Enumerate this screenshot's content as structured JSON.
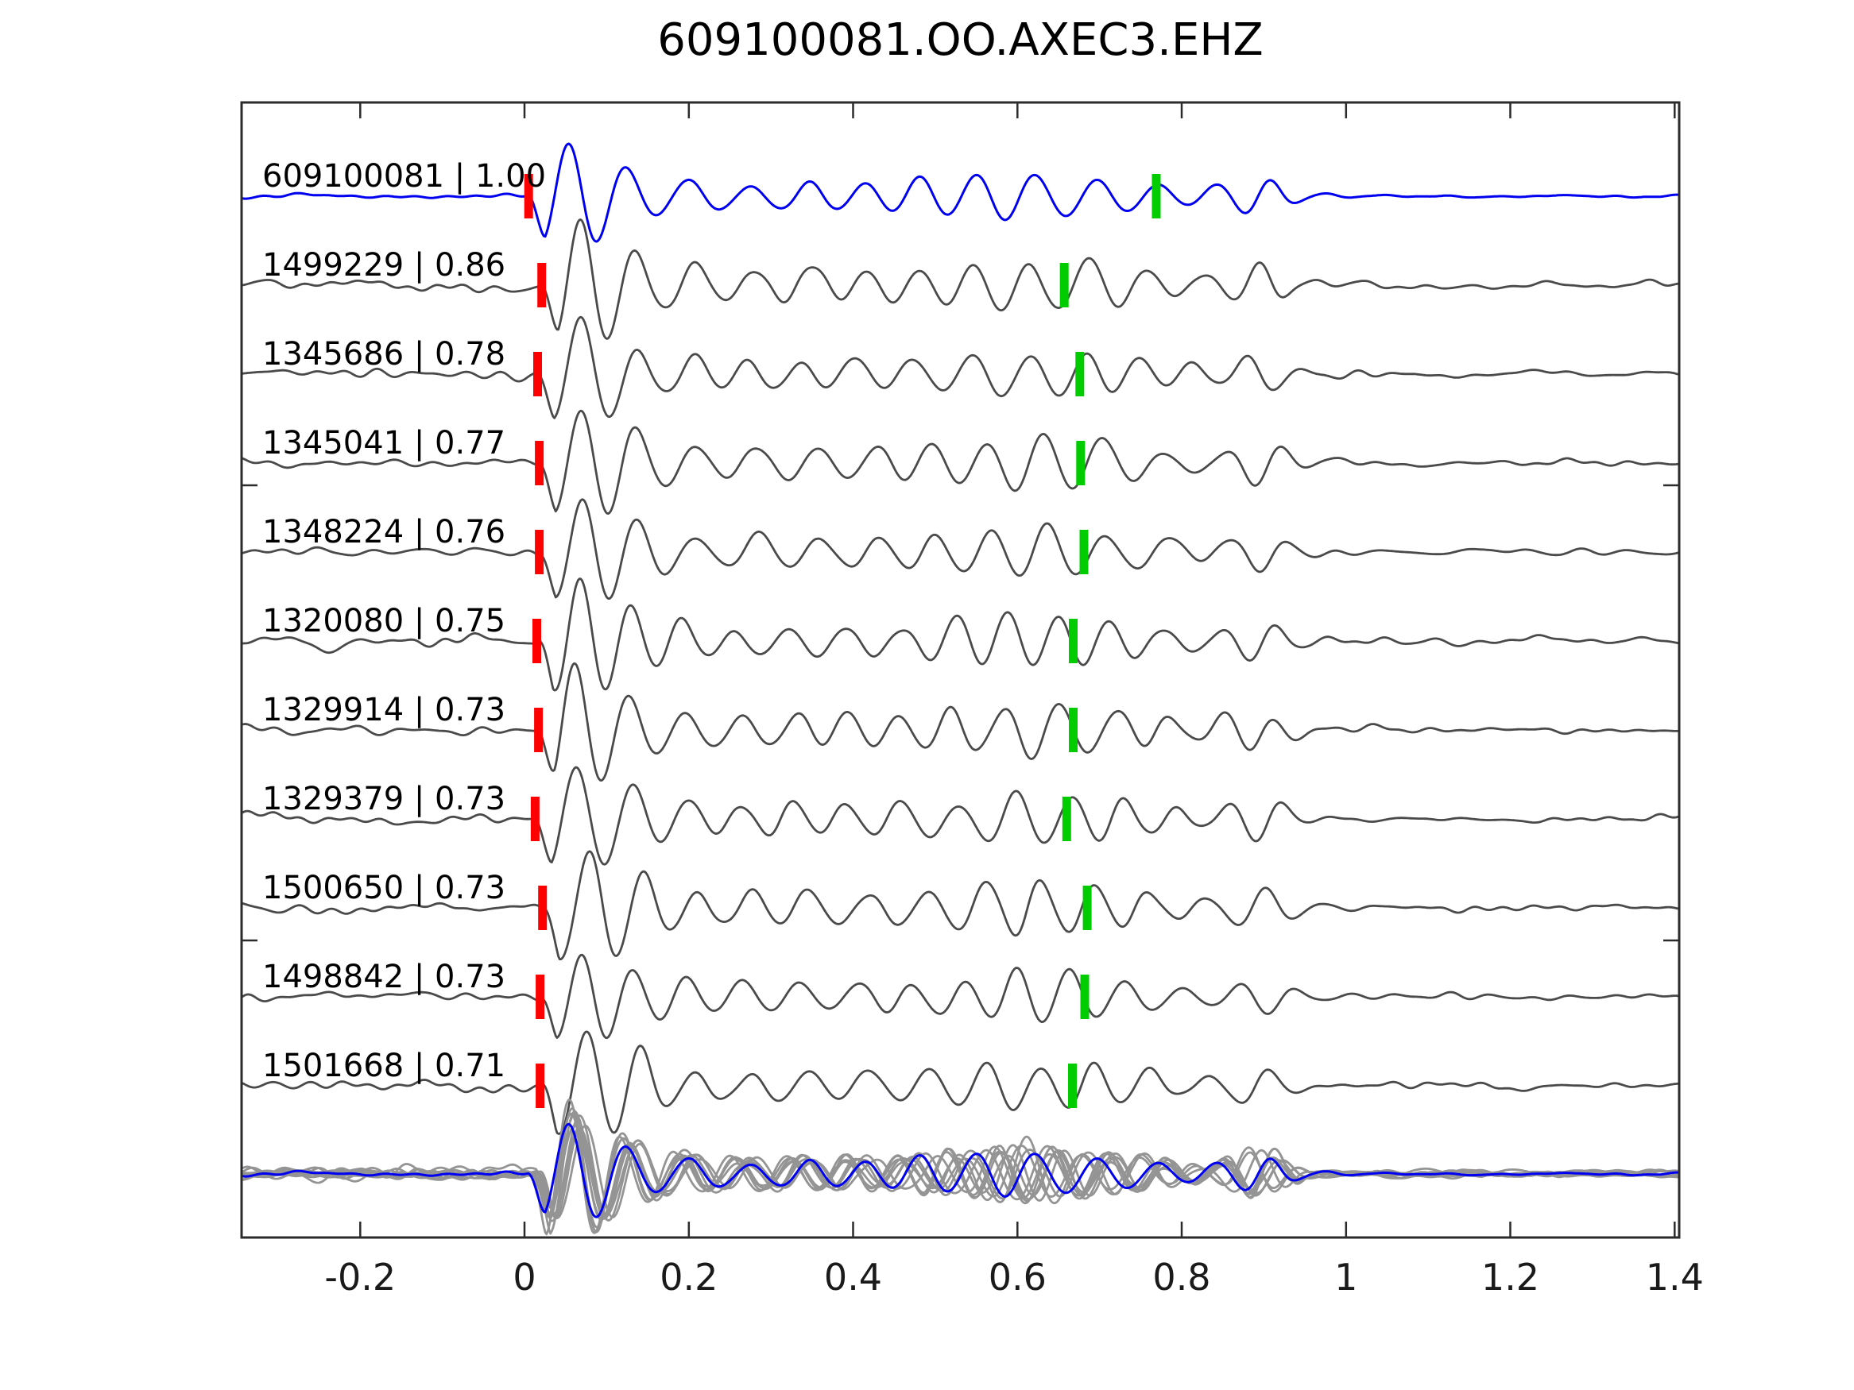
{
  "title": "609100081.OO.AXEC3.EHZ",
  "colors": {
    "template_blue": "#0000f0",
    "trace_gray": "#4a4a4a",
    "overlay_gray": "#949494",
    "pick_red": "#ff0000",
    "pick_green": "#00cc00",
    "axis": "#2b2b2b",
    "text": "#1a1a1a",
    "background": "#ffffff"
  },
  "chart_data": {
    "type": "line",
    "title": "609100081.OO.AXEC3.EHZ",
    "xlabel": "",
    "ylabel": "",
    "xlim": [
      -0.344,
      1.406
    ],
    "grid": false,
    "legend": "none",
    "x_ticks": [
      -0.2,
      0,
      0.2,
      0.4,
      0.6,
      0.8,
      1,
      1.2,
      1.4
    ],
    "x_tick_labels": [
      "-0.2",
      "0",
      "0.2",
      "0.4",
      "0.6",
      "0.8",
      "1",
      "1.2",
      "1.4"
    ],
    "description": "Template-matching seismogram comparison: template event 609100081 (blue) over 10 matched detections (gray), with red P-pick bars near t=0 and green secondary pick bars near t=0.67; bottom row overlays all detections (gray) with the template (blue).",
    "traces": [
      {
        "id": "609100081",
        "corr": "1.00",
        "label": "609100081 | 1.00",
        "line": "blue",
        "pick_red": 0.005,
        "pick_green": 0.769
      },
      {
        "id": "1499229",
        "corr": "0.86",
        "label": "1499229 | 0.86",
        "line": "gray",
        "pick_red": 0.021,
        "pick_green": 0.657
      },
      {
        "id": "1345686",
        "corr": "0.78",
        "label": "1345686 | 0.78",
        "line": "gray",
        "pick_red": 0.016,
        "pick_green": 0.676
      },
      {
        "id": "1345041",
        "corr": "0.77",
        "label": "1345041 | 0.77",
        "line": "gray",
        "pick_red": 0.018,
        "pick_green": 0.677
      },
      {
        "id": "1348224",
        "corr": "0.76",
        "label": "1348224 | 0.76",
        "line": "gray",
        "pick_red": 0.018,
        "pick_green": 0.681
      },
      {
        "id": "1320080",
        "corr": "0.75",
        "label": "1320080 | 0.75",
        "line": "gray",
        "pick_red": 0.015,
        "pick_green": 0.668
      },
      {
        "id": "1329914",
        "corr": "0.73",
        "label": "1329914 | 0.73",
        "line": "gray",
        "pick_red": 0.017,
        "pick_green": 0.668
      },
      {
        "id": "1329379",
        "corr": "0.73",
        "label": "1329379 | 0.73",
        "line": "gray",
        "pick_red": 0.013,
        "pick_green": 0.66
      },
      {
        "id": "1500650",
        "corr": "0.73",
        "label": "1500650 | 0.73",
        "line": "gray",
        "pick_red": 0.022,
        "pick_green": 0.685
      },
      {
        "id": "1498842",
        "corr": "0.73",
        "label": "1498842 | 0.73",
        "line": "gray",
        "pick_red": 0.019,
        "pick_green": 0.682
      },
      {
        "id": "1501668",
        "corr": "0.71",
        "label": "1501668 | 0.71",
        "line": "gray",
        "pick_red": 0.019,
        "pick_green": 0.667
      }
    ],
    "overlay_row": {
      "gray_trace_count": 10,
      "has_blue_template_on_top": true
    },
    "waveform_character": {
      "onset_x": 0.02,
      "dominant_period": 0.068,
      "first_peak_relative_amp": 1.0,
      "coda_burst_center_x": 0.63,
      "late_bump_center_x": 0.895
    }
  }
}
